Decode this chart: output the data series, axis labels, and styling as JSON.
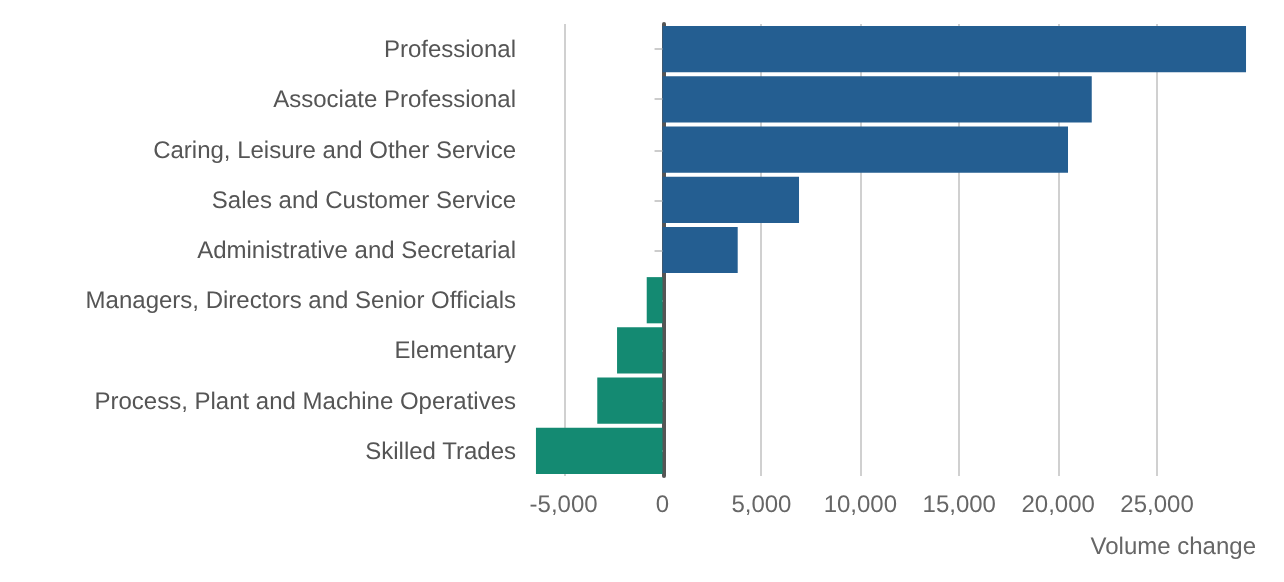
{
  "chart_data": {
    "type": "bar",
    "orientation": "horizontal",
    "xlabel": "Volume change",
    "categories": [
      "Professional",
      "Associate Professional",
      "Caring, Leisure and Other Service",
      "Sales and Customer Service",
      "Administrative and Secretarial",
      "Managers, Directors and Senior Officials",
      "Elementary",
      "Process, Plant and Machine Operatives",
      "Skilled Trades"
    ],
    "values": [
      29500,
      21700,
      20500,
      6900,
      3800,
      -800,
      -2300,
      -3300,
      -6400
    ],
    "colors": [
      "#245e91",
      "#245e91",
      "#245e91",
      "#245e91",
      "#245e91",
      "#148a72",
      "#148a72",
      "#148a72",
      "#148a72"
    ],
    "xlim": [
      -6600,
      29600
    ],
    "xticks": [
      {
        "value": -5000,
        "label": "-5,000"
      },
      0,
      {
        "value": 5000,
        "label": "5,000"
      },
      {
        "value": 10000,
        "label": "10,000"
      },
      {
        "value": 15000,
        "label": "15,000"
      },
      {
        "value": 20000,
        "label": "20,000"
      },
      {
        "value": 25000,
        "label": "25,000"
      }
    ],
    "grid": "x"
  }
}
